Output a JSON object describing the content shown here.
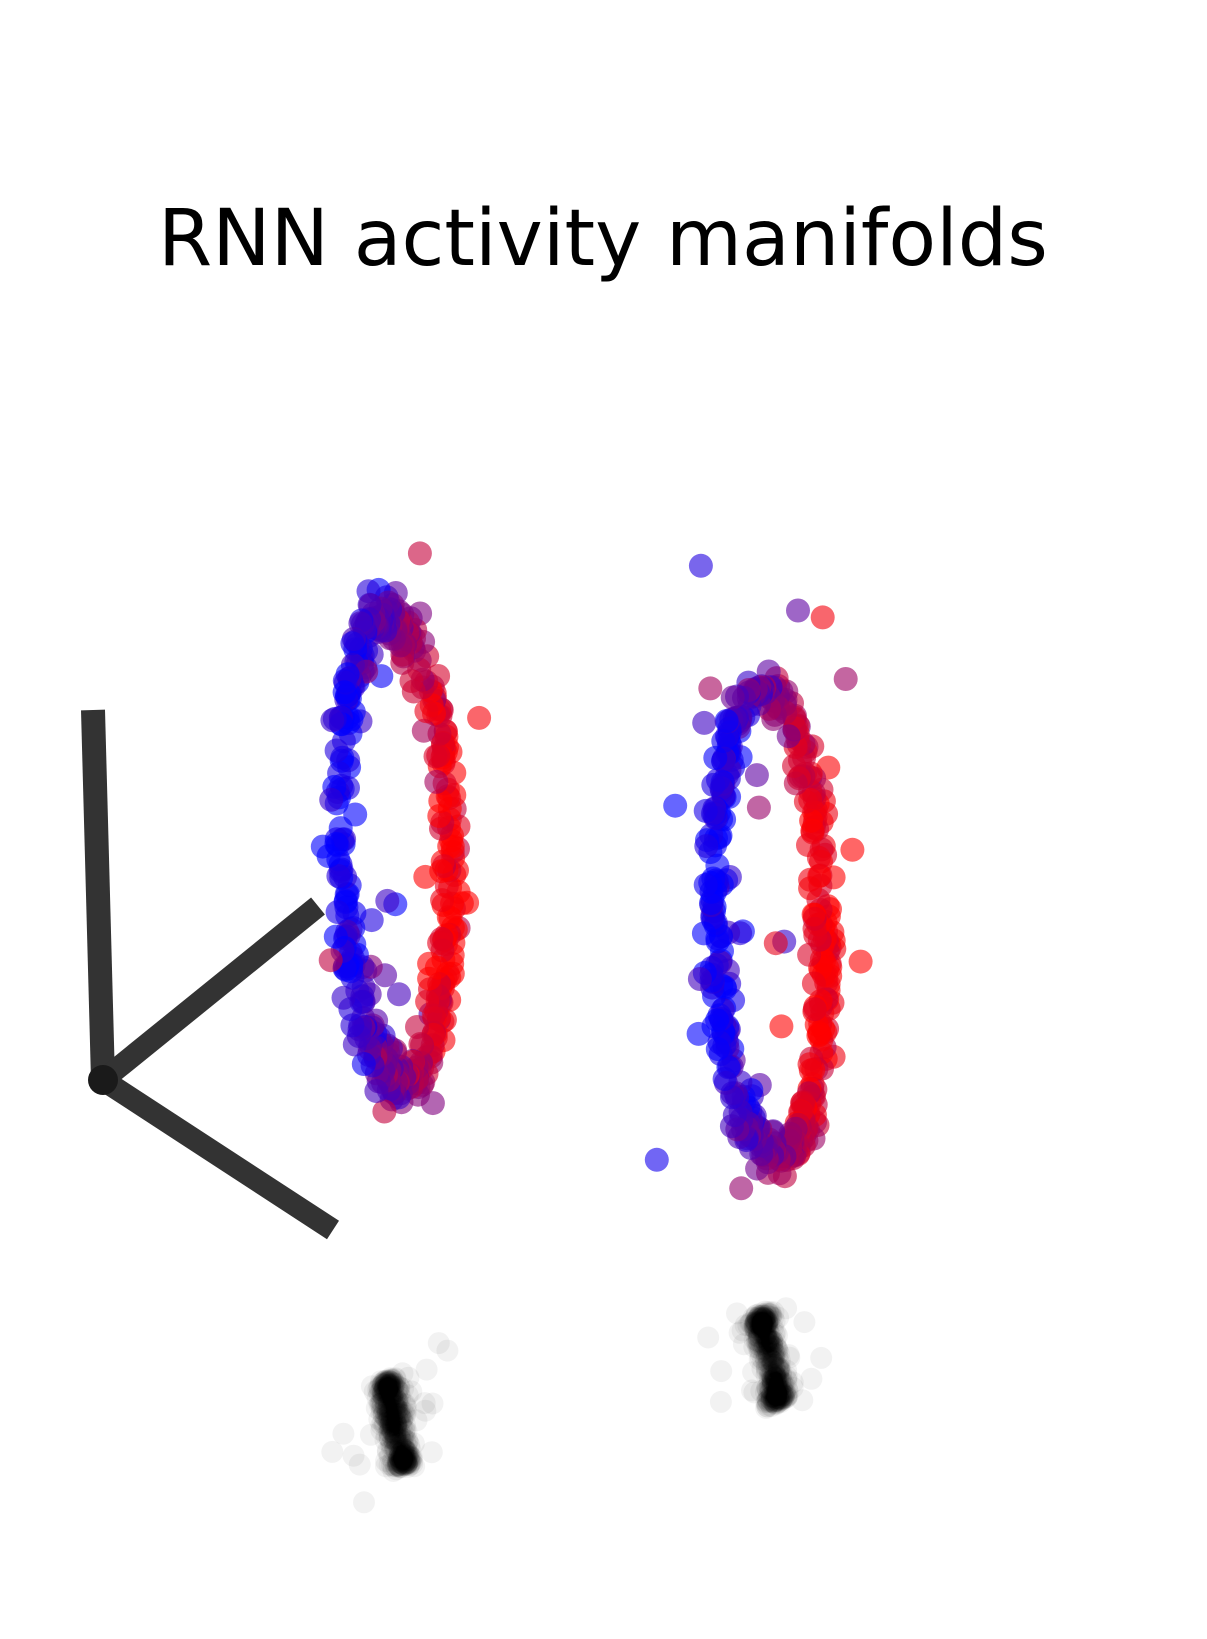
{
  "chart_data": {
    "type": "scatter",
    "title": "RNN activity manifolds",
    "projection": "3d",
    "axes_visible": false,
    "grid": false,
    "legend": "none",
    "colors": {
      "start": "#0000ff",
      "end": "#ff0000",
      "shadow": "#000000",
      "axis_lines": "#333333"
    },
    "point_alpha": 0.6,
    "shadow_alpha": 0.05,
    "series": [
      {
        "ring": 1,
        "center": [
          -1.2,
          0.0,
          0.6
        ],
        "radius": 1.0,
        "points": 420,
        "outliers": 30,
        "shadow_z": -1.9
      },
      {
        "ring": 2,
        "center": [
          1.3,
          0.0,
          -0.5
        ],
        "radius": 1.0,
        "points": 420,
        "outliers": 30,
        "shadow_z": -2.4
      }
    ]
  }
}
